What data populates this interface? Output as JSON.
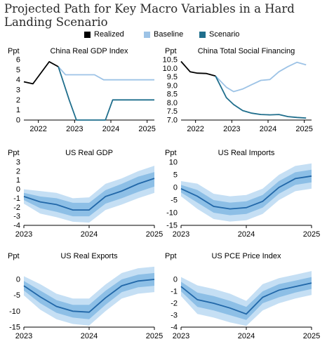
{
  "title": "Projected Path for Key Macro Variables in a Hard Landing Scenario",
  "legend": [
    {
      "label": "Realized",
      "color": "#000000"
    },
    {
      "label": "Baseline",
      "color": "#9dc3e6"
    },
    {
      "label": "Scenario",
      "color": "#1f6e8c"
    }
  ],
  "chart_data": [
    {
      "type": "line",
      "title": "China Real GDP Index",
      "ylabel": "Ppt",
      "ylim": [
        0,
        6
      ],
      "yticks": [
        0,
        1,
        2,
        3,
        4,
        5,
        6
      ],
      "xlim": [
        2021.6,
        2025.2
      ],
      "xticks": [
        2022,
        2023,
        2024,
        2025
      ],
      "series": [
        {
          "name": "Realized",
          "x": [
            2021.6,
            2021.85,
            2022.3,
            2022.55
          ],
          "y": [
            3.8,
            3.6,
            5.8,
            5.3
          ],
          "color": "#000000"
        },
        {
          "name": "Baseline",
          "x": [
            2022.55,
            2022.75,
            2023.55,
            2023.8,
            2025.2
          ],
          "y": [
            5.3,
            4.5,
            4.5,
            4.0,
            4.0
          ],
          "color": "#9dc3e6"
        },
        {
          "name": "Scenario",
          "x": [
            2022.55,
            2022.85,
            2023.05,
            2023.85,
            2024.05,
            2025.2
          ],
          "y": [
            5.3,
            2.0,
            0.0,
            0.0,
            2.0,
            2.0
          ],
          "color": "#1f6e8c"
        }
      ]
    },
    {
      "type": "line",
      "title": "China Total Social Financing",
      "ylabel": "Ppt",
      "ylim": [
        7.0,
        10.5
      ],
      "yticks": [
        7.0,
        7.5,
        8.0,
        8.5,
        9.0,
        9.5,
        10.0,
        10.5
      ],
      "xlim": [
        2021.6,
        2025.2
      ],
      "xticks": [
        2022,
        2023,
        2024,
        2025
      ],
      "series": [
        {
          "name": "Realized",
          "x": [
            2021.6,
            2021.85,
            2022.05,
            2022.3,
            2022.55
          ],
          "y": [
            10.4,
            9.8,
            9.72,
            9.7,
            9.55
          ],
          "color": "#000000"
        },
        {
          "name": "Baseline",
          "x": [
            2022.55,
            2022.85,
            2023.05,
            2023.3,
            2023.55,
            2023.8,
            2024.05,
            2024.3,
            2024.55,
            2024.8,
            2025.05
          ],
          "y": [
            9.55,
            8.9,
            8.65,
            8.8,
            9.05,
            9.3,
            9.35,
            9.8,
            10.1,
            10.35,
            10.2
          ],
          "color": "#9dc3e6"
        },
        {
          "name": "Scenario",
          "x": [
            2022.55,
            2022.85,
            2023.05,
            2023.3,
            2023.55,
            2023.8,
            2024.05,
            2024.3,
            2024.55,
            2024.8,
            2025.05
          ],
          "y": [
            9.55,
            8.3,
            7.9,
            7.55,
            7.4,
            7.32,
            7.3,
            7.32,
            7.2,
            7.15,
            7.12
          ],
          "color": "#1f6e8c"
        }
      ]
    },
    {
      "type": "area",
      "title": "US Real GDP",
      "ylabel": "Ppt",
      "ylim": [
        -4,
        3
      ],
      "yticks": [
        -4,
        -3,
        -2,
        -1,
        0,
        1,
        2,
        3
      ],
      "xlim": [
        2023,
        2025
      ],
      "xticks": [
        2023,
        2024,
        2025
      ],
      "x": [
        2023.0,
        2023.25,
        2023.5,
        2023.75,
        2024.0,
        2024.25,
        2024.5,
        2024.75,
        2025.0
      ],
      "median": [
        -0.8,
        -1.4,
        -1.7,
        -2.3,
        -2.3,
        -0.8,
        -0.2,
        0.6,
        1.2
      ],
      "band_inner": {
        "lower": [
          -1.2,
          -2.1,
          -2.5,
          -3.0,
          -3.0,
          -1.6,
          -1.0,
          -0.3,
          0.3
        ],
        "upper": [
          -0.4,
          -0.8,
          -1.0,
          -1.5,
          -1.5,
          -0.1,
          0.6,
          1.4,
          1.9
        ]
      },
      "band_outer": {
        "lower": [
          -1.6,
          -2.7,
          -3.1,
          -3.6,
          -3.7,
          -2.3,
          -1.7,
          -1.0,
          -0.4
        ],
        "upper": [
          0.0,
          -0.2,
          -0.4,
          -1.0,
          -0.9,
          0.6,
          1.2,
          2.0,
          2.6
        ]
      }
    },
    {
      "type": "area",
      "title": "US Real Imports",
      "ylabel": "Ppt",
      "ylim": [
        -15,
        10
      ],
      "yticks": [
        -15,
        -10,
        -5,
        0,
        5,
        10
      ],
      "xlim": [
        2023,
        2025
      ],
      "xticks": [
        2023,
        2024,
        2025
      ],
      "x": [
        2023.0,
        2023.25,
        2023.5,
        2023.75,
        2024.0,
        2024.25,
        2024.5,
        2024.75,
        2025.0
      ],
      "median": [
        -0.5,
        -3.5,
        -7.5,
        -8.5,
        -8.0,
        -5.5,
        0.0,
        3.5,
        4.5
      ],
      "band_inner": {
        "lower": [
          -2.0,
          -6.0,
          -10.0,
          -11.0,
          -10.5,
          -8.0,
          -2.5,
          1.0,
          2.0
        ],
        "upper": [
          1.0,
          -1.0,
          -5.0,
          -6.0,
          -5.5,
          -3.0,
          2.5,
          6.0,
          7.0
        ]
      },
      "band_outer": {
        "lower": [
          -3.5,
          -8.5,
          -12.5,
          -13.5,
          -13.0,
          -10.5,
          -5.0,
          -1.5,
          -0.5
        ],
        "upper": [
          2.5,
          1.5,
          -2.5,
          -3.5,
          -3.0,
          -0.5,
          5.0,
          8.5,
          9.5
        ]
      }
    },
    {
      "type": "area",
      "title": "US Real Exports",
      "ylabel": "Ppt",
      "ylim": [
        -15,
        0
      ],
      "yticks": [
        -15,
        -10,
        -5,
        0
      ],
      "xlim": [
        2023,
        2025
      ],
      "xticks": [
        2023,
        2024,
        2025
      ],
      "x": [
        2023.0,
        2023.25,
        2023.5,
        2023.75,
        2024.0,
        2024.25,
        2024.5,
        2024.75,
        2025.0
      ],
      "median": [
        -2.0,
        -5.5,
        -8.5,
        -10.0,
        -10.3,
        -5.8,
        -2.0,
        -0.5,
        0.0
      ],
      "band_inner": {
        "lower": [
          -3.5,
          -7.5,
          -10.5,
          -12.0,
          -12.5,
          -8.0,
          -4.0,
          -2.5,
          -2.0
        ],
        "upper": [
          -0.5,
          -3.5,
          -6.5,
          -8.0,
          -8.0,
          -3.6,
          0.0,
          1.5,
          2.0
        ]
      },
      "band_outer": {
        "lower": [
          -5.0,
          -9.5,
          -12.5,
          -14.0,
          -14.5,
          -10.0,
          -6.0,
          -4.5,
          -4.0
        ],
        "upper": [
          1.0,
          -1.5,
          -4.5,
          -6.0,
          -6.0,
          -1.6,
          2.0,
          3.5,
          4.0
        ]
      }
    },
    {
      "type": "area",
      "title": "US PCE Price Index",
      "ylabel": "Ppt",
      "ylim": [
        -4,
        0
      ],
      "yticks": [
        -4,
        -3,
        -2,
        -1,
        0
      ],
      "xlim": [
        2023,
        2025
      ],
      "xticks": [
        2023,
        2024,
        2025
      ],
      "x": [
        2023.0,
        2023.25,
        2023.5,
        2023.75,
        2024.0,
        2024.25,
        2024.5,
        2024.75,
        2025.0
      ],
      "median": [
        -0.6,
        -1.7,
        -2.0,
        -2.4,
        -2.9,
        -1.5,
        -0.9,
        -0.6,
        -0.3
      ],
      "band_inner": {
        "lower": [
          -1.0,
          -2.3,
          -2.6,
          -3.0,
          -3.4,
          -2.0,
          -1.5,
          -1.1,
          -0.8
        ],
        "upper": [
          -0.2,
          -1.1,
          -1.4,
          -1.8,
          -2.3,
          -1.0,
          -0.4,
          -0.1,
          0.2
        ]
      },
      "band_outer": {
        "lower": [
          -1.4,
          -2.9,
          -3.2,
          -3.6,
          -3.9,
          -2.6,
          -2.0,
          -1.6,
          -1.3
        ],
        "upper": [
          0.2,
          -0.5,
          -0.8,
          -1.2,
          -1.8,
          -0.4,
          0.1,
          0.4,
          0.7
        ]
      }
    }
  ]
}
